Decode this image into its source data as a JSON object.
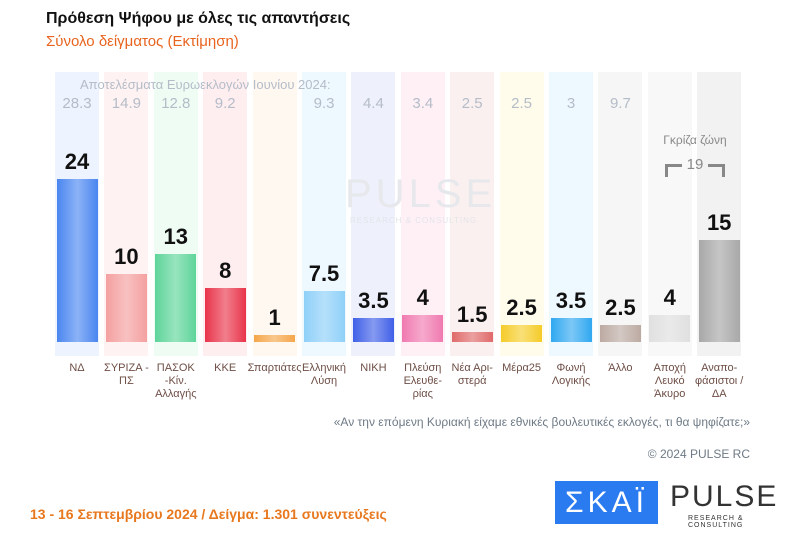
{
  "title": "Πρόθεση Ψήφου με όλες τις απαντήσεις",
  "subtitle": "Σύνολο δείγματος   (Εκτίμηση)",
  "watermark": {
    "main": "PULSE",
    "sub": "RESEARCH & CONSULTING"
  },
  "chart_data": {
    "type": "bar",
    "title": "Πρόθεση Ψήφου με όλες τις απαντήσεις",
    "subtitle": "Σύνολο δείγματος   (Εκτίμηση)",
    "prev_caption": "Αποτελέσματα Ευρωεκλογών Ιουνίου 2024:",
    "categories": [
      "ΝΔ",
      "ΣΥΡΙΖΑ - ΠΣ",
      "ΠΑΣΟΚ -Κίν. Αλλαγής",
      "ΚΚΕ",
      "Σπαρτιάτες",
      "Ελληνική Λύση",
      "ΝΙΚΗ",
      "Πλεύση Ελευθε- ρίας",
      "Νέα Αρι- στερά",
      "Μέρα25",
      "Φωνή Λογικής",
      "Άλλο",
      "Αποχή Λευκό Άκυρο",
      "Αναπο- φάσιστοι / ΔΑ"
    ],
    "values": [
      24,
      10,
      13,
      8,
      1,
      7.5,
      3.5,
      4,
      1.5,
      2.5,
      3.5,
      2.5,
      4,
      15
    ],
    "value_labels": [
      "24",
      "10",
      "13",
      "8",
      "1",
      "7.5",
      "3.5",
      "4",
      "1.5",
      "2.5",
      "3.5",
      "2.5",
      "4",
      "15"
    ],
    "previous": [
      "28.3",
      "14.9",
      "12.8",
      "9.2",
      "",
      "9.3",
      "4.4",
      "3.4",
      "2.5",
      "2.5",
      "3",
      "9.7",
      "",
      ""
    ],
    "colors": [
      "#4a86f0",
      "#f4a0a0",
      "#5ed49a",
      "#e8344a",
      "#f5a64a",
      "#8fd0f8",
      "#4060e8",
      "#f07ab0",
      "#e06a6a",
      "#f5cc2a",
      "#30a8f0",
      "#bcaaa2",
      "#e0e0e0",
      "#a8a8a8"
    ],
    "band_colors": [
      "#eef4ff",
      "#fff2f2",
      "#eefcf4",
      "#ffeef0",
      "#fff8f0",
      "#eef8ff",
      "#eef0fc",
      "#fff0f6",
      "#fbf0f0",
      "#fffcec",
      "#eef8ff",
      "#f6f6f6",
      "#f8f8f8",
      "#f2f2f2"
    ],
    "logos": [
      "ΝΔ",
      "ΣΥΡΙΖΑ",
      "ΠΑΣΟΚ",
      "ΚΚΕ",
      "Σπαρτιάτες",
      "Ελληνική Λύση",
      "ΝΙΚΗ",
      "Πλεύση",
      "Νέα Αριστερά",
      "ΜέΡΑ25",
      "Φωνή Λογικής",
      "",
      "",
      ""
    ],
    "ylim": [
      0,
      30
    ],
    "grid": false,
    "annotation": {
      "label": "Γκρίζα ζώνη",
      "value": "19"
    }
  },
  "question": "«Αν την επόμενη Κυριακή είχαμε εθνικές βουλευτικές εκλογές, τι θα ψηφίζατε;»",
  "copyright": "© 2024 PULSE RC",
  "footer": "13 - 16 Σεπτεμβρίου 2024  /  Δείγμα:  1.301 συνεντεύξεις",
  "logos": {
    "skai": "ΣΚΑΪ",
    "pulse": "PULSE",
    "pulse_sub": "RESEARCH & CONSULTING"
  }
}
